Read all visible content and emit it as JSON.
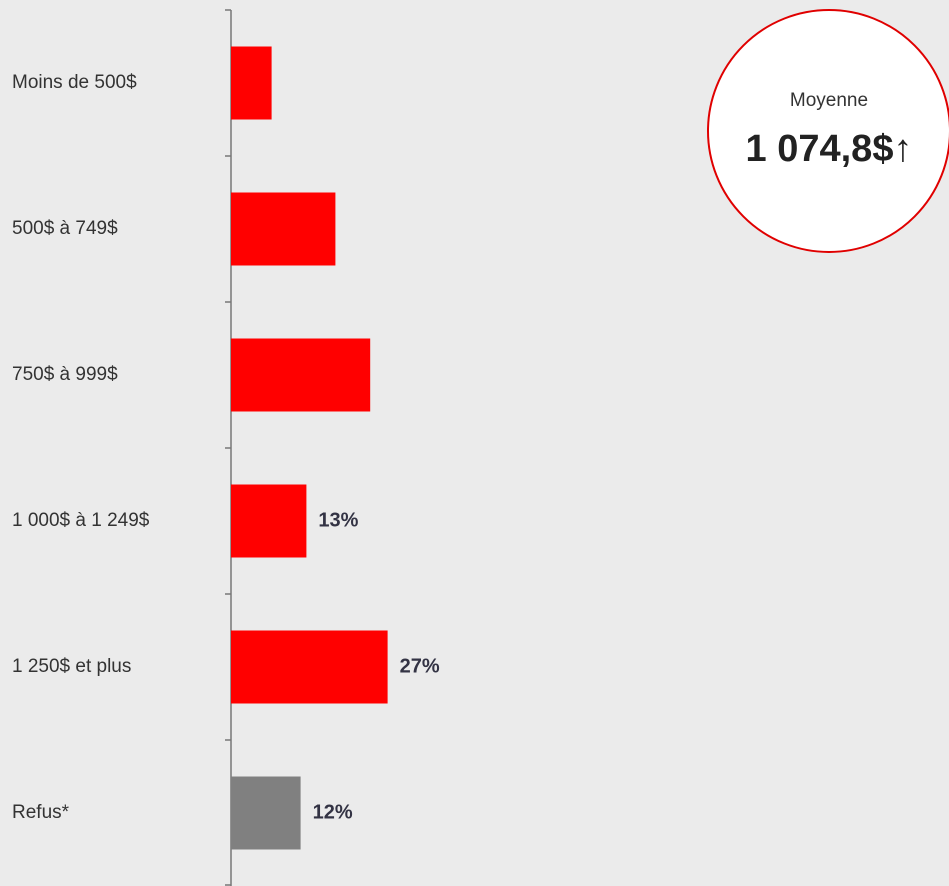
{
  "chart_data": {
    "type": "hbar",
    "categories": [
      "Moins de 500$",
      "500$ à 749$",
      "750$ à 999$",
      "1 000$ à 1 249$",
      "1 250$ et plus",
      "Refus*"
    ],
    "values": [
      7,
      18,
      24,
      13,
      27,
      12
    ],
    "value_labels": [
      null,
      null,
      null,
      "13%",
      "27%",
      "12%"
    ],
    "colors": [
      "#ff0000",
      "#ff0000",
      "#ff0000",
      "#ff0000",
      "#ff0000",
      "#808080"
    ],
    "xlim": [
      0,
      100
    ],
    "annotation": {
      "label": "Moyenne",
      "value": "1 074,8$↑"
    }
  }
}
